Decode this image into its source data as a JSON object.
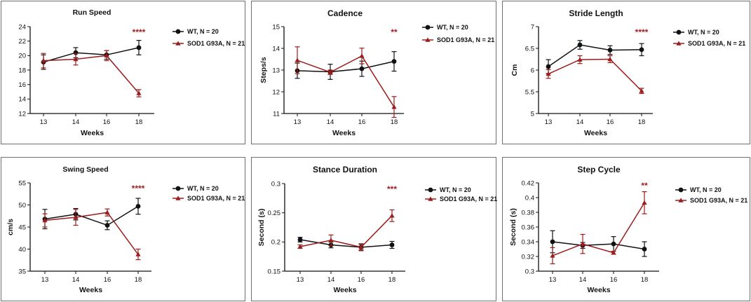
{
  "colors": {
    "wt": "#111111",
    "sod": "#9b1c1c"
  },
  "chart_data": [
    {
      "type": "line",
      "title": "Run Speed",
      "xlabel": "Weeks",
      "ylabel": "",
      "categories": [
        "13",
        "14",
        "16",
        "18"
      ],
      "ylim": [
        12,
        24
      ],
      "yticks": [
        12,
        14,
        16,
        18,
        20,
        22,
        24
      ],
      "series": [
        {
          "name": "WT, N = 20",
          "values": [
            19.1,
            20.4,
            20.1,
            21.1
          ],
          "err": [
            1.0,
            0.7,
            0.6,
            1.0
          ],
          "marker": "circle"
        },
        {
          "name": "SOD1 G93A, N = 21",
          "values": [
            19.3,
            19.5,
            20.0,
            14.8
          ],
          "err": [
            1.0,
            0.8,
            0.7,
            0.5
          ],
          "marker": "triangle"
        }
      ],
      "significance": {
        "label": "****",
        "category": "18"
      }
    },
    {
      "type": "line",
      "title": "Cadence",
      "xlabel": "Weeks",
      "ylabel": "Steps/s",
      "categories": [
        "13",
        "14",
        "16",
        "18"
      ],
      "ylim": [
        11,
        15
      ],
      "yticks": [
        11,
        12,
        13,
        14,
        15
      ],
      "series": [
        {
          "name": "WT, N = 20",
          "values": [
            12.97,
            12.92,
            13.06,
            13.4
          ],
          "err": [
            0.35,
            0.35,
            0.35,
            0.45
          ],
          "marker": "circle"
        },
        {
          "name": "SOD1 G93A, N = 21",
          "values": [
            13.45,
            12.9,
            13.65,
            11.3
          ],
          "err": [
            0.62,
            0.1,
            0.36,
            0.48
          ],
          "marker": "triangle"
        }
      ],
      "significance": {
        "label": "**",
        "category": "18"
      }
    },
    {
      "type": "line",
      "title": "Stride Length",
      "xlabel": "Weeks",
      "ylabel": "Cm",
      "categories": [
        "13",
        "14",
        "16",
        "18"
      ],
      "ylim": [
        5.0,
        7.0
      ],
      "yticks": [
        5.0,
        5.5,
        6.0,
        6.5,
        7.0
      ],
      "series": [
        {
          "name": "WT, N = 20",
          "values": [
            6.08,
            6.58,
            6.46,
            6.47
          ],
          "err": [
            0.16,
            0.1,
            0.1,
            0.14
          ],
          "marker": "circle"
        },
        {
          "name": "SOD1 G93A, N = 21",
          "values": [
            5.91,
            6.24,
            6.25,
            5.52
          ],
          "err": [
            0.1,
            0.09,
            0.08,
            0.06
          ],
          "marker": "triangle"
        }
      ],
      "significance": {
        "label": "****",
        "category": "18"
      }
    },
    {
      "type": "line",
      "title": "Swing Speed",
      "xlabel": "Weeks",
      "ylabel": "cm/s",
      "categories": [
        "13",
        "14",
        "16",
        "18"
      ],
      "ylim": [
        35,
        55
      ],
      "yticks": [
        35,
        40,
        45,
        50,
        55
      ],
      "series": [
        {
          "name": "WT, N = 20",
          "values": [
            46.8,
            47.9,
            45.4,
            49.7
          ],
          "err": [
            2.2,
            1.3,
            1.0,
            1.8
          ],
          "marker": "circle"
        },
        {
          "name": "SOD1 G93A, N = 21",
          "values": [
            46.5,
            47.2,
            48.3,
            38.8
          ],
          "err": [
            1.5,
            1.8,
            0.8,
            1.2
          ],
          "marker": "triangle"
        }
      ],
      "significance": {
        "label": "****",
        "category": "18"
      }
    },
    {
      "type": "line",
      "title": "Stance Duration",
      "xlabel": "Weeks",
      "ylabel": "Second (s)",
      "categories": [
        "13",
        "14",
        "16",
        "18"
      ],
      "ylim": [
        0.15,
        0.3
      ],
      "yticks": [
        0.15,
        0.2,
        0.25,
        0.3
      ],
      "series": [
        {
          "name": "WT, N = 20",
          "values": [
            0.204,
            0.195,
            0.191,
            0.195
          ],
          "err": [
            0.004,
            0.005,
            0.005,
            0.006
          ],
          "marker": "circle"
        },
        {
          "name": "SOD1 G93A, N = 21",
          "values": [
            0.192,
            0.203,
            0.191,
            0.245
          ],
          "err": [
            0.003,
            0.009,
            0.006,
            0.01
          ],
          "marker": "triangle"
        }
      ],
      "significance": {
        "label": "***",
        "category": "18"
      }
    },
    {
      "type": "line",
      "title": "Step Cycle",
      "xlabel": "Weeks",
      "ylabel": "Second (s)",
      "categories": [
        "13",
        "14",
        "16",
        "18"
      ],
      "ylim": [
        0.3,
        0.42
      ],
      "yticks": [
        0.3,
        0.32,
        0.34,
        0.36,
        0.38,
        0.4,
        0.42
      ],
      "series": [
        {
          "name": "WT, N = 20",
          "values": [
            0.34,
            0.335,
            0.337,
            0.33
          ],
          "err": [
            0.015,
            0.004,
            0.01,
            0.01
          ],
          "marker": "circle"
        },
        {
          "name": "SOD1 G93A, N = 21",
          "values": [
            0.321,
            0.337,
            0.325,
            0.393
          ],
          "err": [
            0.011,
            0.013,
            0.002,
            0.015
          ],
          "marker": "triangle"
        }
      ],
      "significance": {
        "label": "**",
        "category": "18"
      }
    }
  ]
}
